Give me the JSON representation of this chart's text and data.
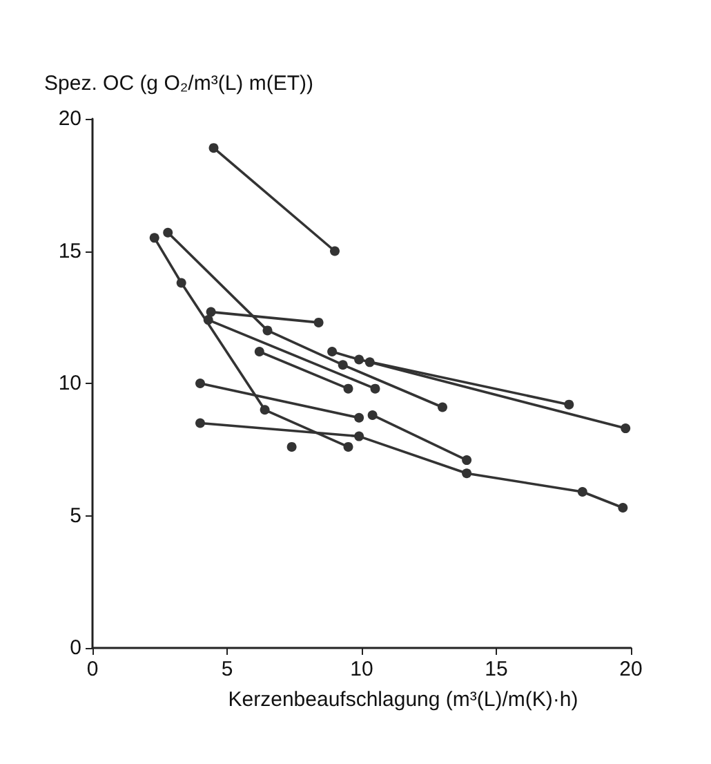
{
  "chart_data": {
    "type": "line",
    "ylabel": "Spez. OC (g O₂/m³(L) m(ET))",
    "xlabel": "Kerzenbeaufschlagung (m³(L)/m(K)·h)",
    "xlim": [
      0,
      20
    ],
    "xticks": [
      0,
      5,
      10,
      15,
      20
    ],
    "ylim": [
      0,
      20
    ],
    "yticks": [
      0,
      5,
      10,
      15,
      20
    ],
    "grid": false,
    "marker": "circle",
    "line_style": "solid",
    "series": [
      {
        "color": "#333333",
        "x": [
          4.5,
          9.0
        ],
        "values": [
          18.9,
          15.0
        ]
      },
      {
        "color": "#333333",
        "x": [
          2.8,
          6.5,
          9.3,
          13.0
        ],
        "values": [
          15.7,
          12.0,
          10.7,
          9.1
        ]
      },
      {
        "color": "#333333",
        "x": [
          4.4,
          8.4
        ],
        "values": [
          12.7,
          12.3
        ]
      },
      {
        "color": "#333333",
        "x": [
          4.3,
          10.5
        ],
        "values": [
          12.4,
          9.8
        ]
      },
      {
        "color": "#333333",
        "x": [
          8.9,
          9.9,
          17.7
        ],
        "values": [
          11.2,
          10.9,
          9.2
        ]
      },
      {
        "color": "#333333",
        "x": [
          10.3,
          19.8
        ],
        "values": [
          10.8,
          8.3
        ]
      },
      {
        "color": "#333333",
        "x": [
          6.2,
          9.5
        ],
        "values": [
          11.2,
          9.8
        ]
      },
      {
        "color": "#333333",
        "x": [
          2.3,
          3.3,
          6.4,
          9.5
        ],
        "values": [
          15.5,
          13.8,
          9.0,
          7.6
        ]
      },
      {
        "color": "#333333",
        "x": [
          4.0,
          9.9,
          13.9,
          18.2,
          19.7
        ],
        "values": [
          8.5,
          8.0,
          6.6,
          5.9,
          5.3
        ]
      },
      {
        "color": "#333333",
        "x": [
          4.0,
          9.9
        ],
        "values": [
          10.0,
          8.7
        ]
      },
      {
        "color": "#333333",
        "x": [
          10.4,
          13.9
        ],
        "values": [
          8.8,
          7.1
        ]
      },
      {
        "type": "scatter",
        "color": "#333333",
        "x": [
          7.4
        ],
        "values": [
          7.6
        ]
      }
    ]
  }
}
